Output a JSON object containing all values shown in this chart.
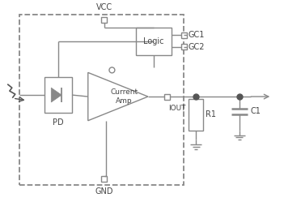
{
  "background_color": "#ffffff",
  "line_color": "#888888",
  "text_color": "#444444",
  "vcc_label": "VCC",
  "gnd_label": "GND",
  "gc1_label": "GC1",
  "gc2_label": "GC2",
  "iout_label": "IOUT",
  "pd_label": "PD",
  "logic_label": "Logic",
  "amp_label": "Current\nAmp",
  "r1_label": "R1",
  "c1_label": "C1"
}
